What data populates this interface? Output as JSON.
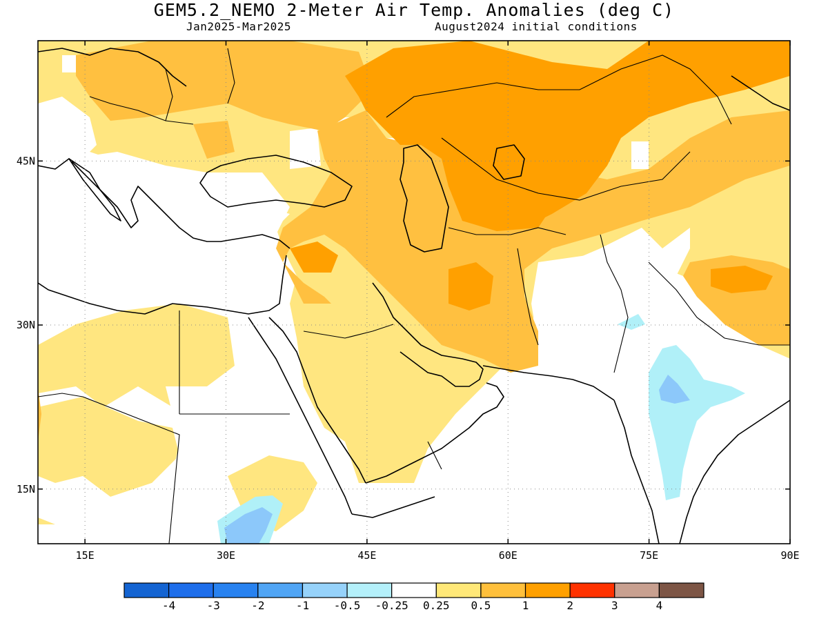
{
  "header": {
    "title": "GEM5.2_NEMO 2-Meter Air Temp. Anomalies (deg C)",
    "period": "Jan2025-Mar2025",
    "init": "August2024 initial conditions"
  },
  "map": {
    "lon_range": [
      10,
      90
    ],
    "lat_range": [
      10,
      56
    ],
    "lon_ticks": [
      {
        "value": 15,
        "label": "15E"
      },
      {
        "value": 30,
        "label": "30E"
      },
      {
        "value": 45,
        "label": "45E"
      },
      {
        "value": 60,
        "label": "60E"
      },
      {
        "value": 75,
        "label": "75E"
      },
      {
        "value": 90,
        "label": "90E"
      }
    ],
    "lat_ticks": [
      {
        "value": 45,
        "label": "45N"
      },
      {
        "value": 30,
        "label": "30N"
      },
      {
        "value": 15,
        "label": "15N"
      }
    ],
    "grid": "dotted",
    "colors": {
      "background": "#ffffff",
      "light_warm": "#ffe680",
      "warm": "#ffc040",
      "strong_warm": "#ffa000",
      "light_cool": "#b0f0f8",
      "cool": "#8cc8fa",
      "coast": "#000000"
    }
  },
  "colorbar": {
    "colors": [
      "#1464d2",
      "#1e6eeb",
      "#2882f0",
      "#50a5f5",
      "#96d2fa",
      "#b4f0fa",
      "#ffffff",
      "#ffe878",
      "#ffc03c",
      "#ffa000",
      "#ff3200",
      "#c8a090",
      "#7d5545"
    ],
    "labels": [
      "-4",
      "-3",
      "-2",
      "-1",
      "-0.5",
      "-0.25",
      "0.25",
      "0.5",
      "1",
      "2",
      "3",
      "4"
    ]
  }
}
